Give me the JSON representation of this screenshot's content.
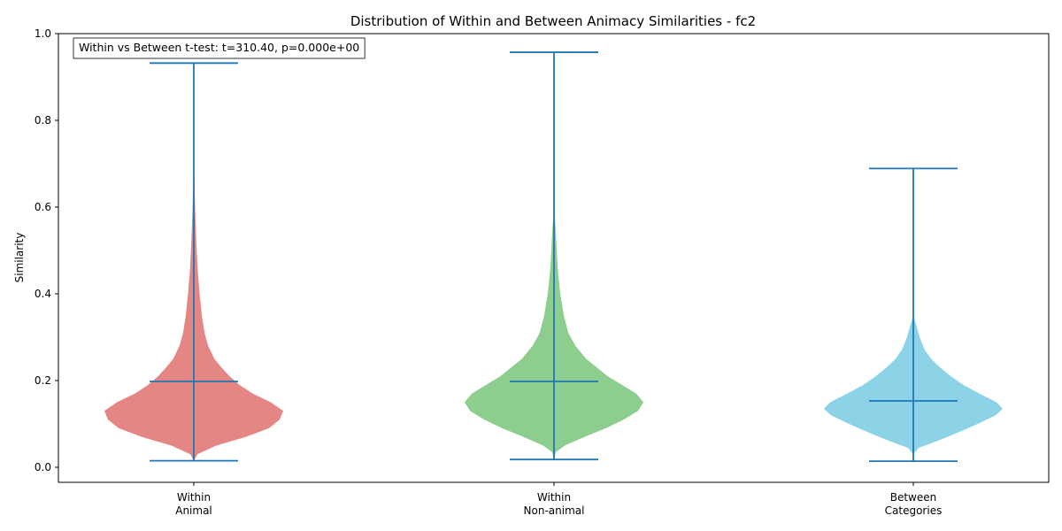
{
  "chart_data": {
    "type": "violin",
    "title": "Distribution of Within and Between Animacy Similarities - fc2",
    "xlabel": "",
    "ylabel": "Similarity",
    "ylim": [
      -0.03,
      1.0
    ],
    "yticks": [
      0.0,
      0.2,
      0.4,
      0.6,
      0.8,
      1.0
    ],
    "ytick_labels": [
      "0.0",
      "0.2",
      "0.4",
      "0.6",
      "0.8",
      "1.0"
    ],
    "grid": false,
    "annotation": "Within vs Between t-test: t=310.40, p=0.000e+00",
    "annotation_position": "top-left",
    "categories": [
      {
        "label_lines": [
          "Within",
          "Animal"
        ],
        "color": "#d9534f",
        "min": 0.015,
        "max": 0.932,
        "mean": 0.198,
        "density": [
          [
            0.015,
            0.0
          ],
          [
            0.03,
            0.04
          ],
          [
            0.05,
            0.25
          ],
          [
            0.07,
            0.58
          ],
          [
            0.09,
            0.84
          ],
          [
            0.11,
            0.96
          ],
          [
            0.13,
            1.0
          ],
          [
            0.15,
            0.86
          ],
          [
            0.17,
            0.66
          ],
          [
            0.19,
            0.51
          ],
          [
            0.21,
            0.4
          ],
          [
            0.23,
            0.31
          ],
          [
            0.25,
            0.23
          ],
          [
            0.28,
            0.16
          ],
          [
            0.31,
            0.12
          ],
          [
            0.35,
            0.09
          ],
          [
            0.4,
            0.065
          ],
          [
            0.45,
            0.045
          ],
          [
            0.5,
            0.032
          ],
          [
            0.55,
            0.022
          ],
          [
            0.6,
            0.014
          ],
          [
            0.65,
            0.008
          ],
          [
            0.7,
            0.004
          ],
          [
            0.75,
            0.0
          ]
        ]
      },
      {
        "label_lines": [
          "Within",
          "Non-animal"
        ],
        "color": "#5cb85c",
        "min": 0.018,
        "max": 0.957,
        "mean": 0.198,
        "density": [
          [
            0.018,
            0.0
          ],
          [
            0.035,
            0.02
          ],
          [
            0.05,
            0.12
          ],
          [
            0.07,
            0.34
          ],
          [
            0.09,
            0.58
          ],
          [
            0.11,
            0.78
          ],
          [
            0.13,
            0.94
          ],
          [
            0.15,
            1.0
          ],
          [
            0.17,
            0.92
          ],
          [
            0.19,
            0.76
          ],
          [
            0.21,
            0.6
          ],
          [
            0.23,
            0.48
          ],
          [
            0.25,
            0.36
          ],
          [
            0.28,
            0.24
          ],
          [
            0.31,
            0.16
          ],
          [
            0.35,
            0.11
          ],
          [
            0.4,
            0.07
          ],
          [
            0.45,
            0.045
          ],
          [
            0.5,
            0.03
          ],
          [
            0.55,
            0.018
          ],
          [
            0.6,
            0.0
          ]
        ]
      },
      {
        "label_lines": [
          "Between",
          "Categories"
        ],
        "color": "#5bc0de",
        "min": 0.014,
        "max": 0.689,
        "mean": 0.153,
        "density": [
          [
            0.014,
            0.0
          ],
          [
            0.03,
            0.0
          ],
          [
            0.045,
            0.06
          ],
          [
            0.06,
            0.26
          ],
          [
            0.08,
            0.5
          ],
          [
            0.1,
            0.72
          ],
          [
            0.12,
            0.92
          ],
          [
            0.135,
            1.0
          ],
          [
            0.15,
            0.93
          ],
          [
            0.17,
            0.74
          ],
          [
            0.19,
            0.56
          ],
          [
            0.21,
            0.42
          ],
          [
            0.23,
            0.3
          ],
          [
            0.25,
            0.2
          ],
          [
            0.27,
            0.13
          ],
          [
            0.3,
            0.07
          ],
          [
            0.33,
            0.03
          ],
          [
            0.35,
            0.0
          ]
        ]
      }
    ],
    "stat_line_color": "#1f77b4",
    "frame_color": "#000000"
  }
}
